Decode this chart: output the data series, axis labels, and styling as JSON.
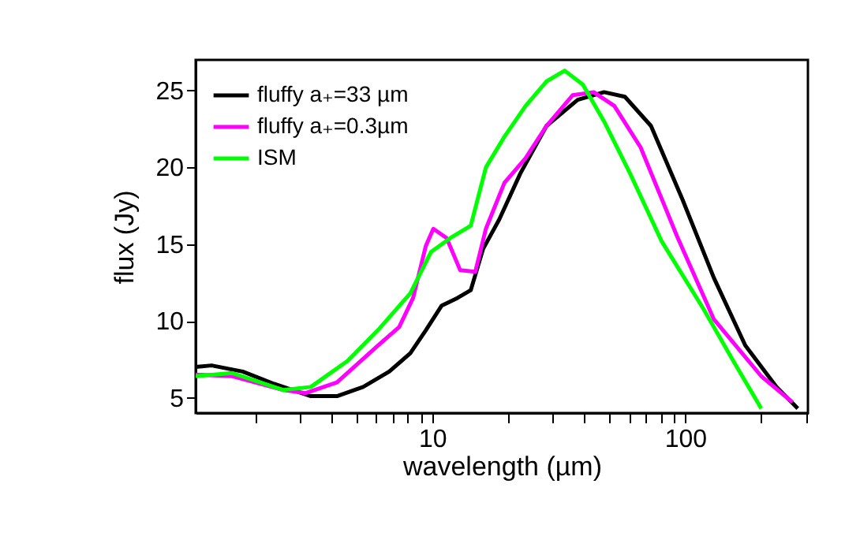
{
  "chart_data": {
    "type": "line",
    "xlabel": "wavelength (µm)",
    "ylabel": "flux (Jy)",
    "log": "x",
    "xlim": [
      1.16,
      306
    ],
    "ylim": [
      4,
      27
    ],
    "xticks": [
      {
        "value": 2,
        "label": null
      },
      {
        "value": 3,
        "label": null
      },
      {
        "value": 4,
        "label": null
      },
      {
        "value": 5,
        "label": null
      },
      {
        "value": 6,
        "label": null
      },
      {
        "value": 7,
        "label": null
      },
      {
        "value": 8,
        "label": null
      },
      {
        "value": 9,
        "label": null
      },
      10,
      {
        "value": 20,
        "label": null
      },
      {
        "value": 30,
        "label": null
      },
      {
        "value": 40,
        "label": null
      },
      {
        "value": 50,
        "label": null
      },
      {
        "value": 60,
        "label": null
      },
      {
        "value": 70,
        "label": null
      },
      {
        "value": 80,
        "label": null
      },
      {
        "value": 90,
        "label": null
      },
      100,
      {
        "value": 200,
        "label": null
      },
      {
        "value": 300,
        "label": null
      }
    ],
    "yticks": [
      5,
      10,
      15,
      20,
      25
    ],
    "legend": "top left",
    "grid": false,
    "series": [
      {
        "name": "fluffy a₊=33 µm",
        "color": "#000000",
        "x": [
          1.16,
          1.34,
          1.78,
          2.37,
          3.31,
          4.2,
          5.33,
          6.76,
          8.19,
          9.44,
          10.9,
          12.6,
          14.2,
          15.9,
          18.4,
          22.3,
          28.3,
          37.6,
          47.8,
          57.8,
          73.3,
          97.7,
          130,
          173,
          230,
          279
        ],
        "values": [
          7.0,
          7.1,
          6.7,
          5.9,
          5.1,
          5.1,
          5.7,
          6.7,
          7.9,
          9.4,
          11.0,
          11.5,
          12.0,
          14.7,
          16.6,
          19.6,
          22.7,
          24.4,
          24.9,
          24.6,
          22.7,
          17.9,
          12.8,
          8.4,
          5.7,
          4.3
        ]
      },
      {
        "name": "fluffy a₊=0.3µm",
        "color": "#ff00ff",
        "x": [
          1.16,
          1.62,
          2.58,
          3.16,
          4.2,
          6.1,
          7.4,
          8.4,
          9.44,
          10.1,
          11.4,
          12.9,
          14.8,
          16.3,
          19.3,
          23.4,
          28.3,
          35.9,
          43.5,
          52.5,
          66.7,
          93,
          130,
          200,
          266
        ],
        "values": [
          6.5,
          6.4,
          5.5,
          5.3,
          6.0,
          8.4,
          9.6,
          11.5,
          14.9,
          16.0,
          15.4,
          13.3,
          13.2,
          16.0,
          19.0,
          20.6,
          22.7,
          24.7,
          24.9,
          24.0,
          21.3,
          15.5,
          10.1,
          6.4,
          4.7
        ]
      },
      {
        "name": "ISM",
        "color": "#00ff00",
        "x": [
          1.16,
          1.62,
          2.58,
          3.31,
          4.63,
          6.1,
          8.19,
          9.9,
          11.8,
          14.2,
          16.3,
          19.3,
          23.4,
          28.3,
          33.4,
          39.4,
          47.8,
          60.6,
          80.7,
          118,
          155,
          200
        ],
        "values": [
          6.4,
          6.6,
          5.5,
          5.7,
          7.4,
          9.4,
          11.8,
          14.5,
          15.4,
          16.2,
          20.0,
          22.0,
          24.0,
          25.6,
          26.3,
          25.4,
          23.0,
          19.6,
          15.2,
          10.8,
          7.4,
          4.3
        ]
      }
    ]
  }
}
